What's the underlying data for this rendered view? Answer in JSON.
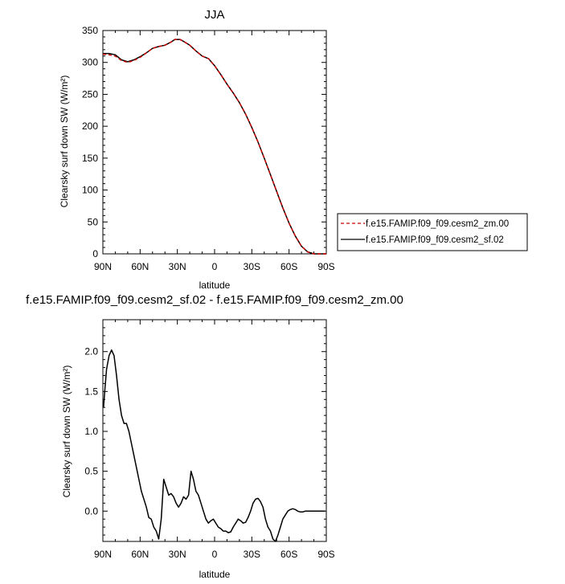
{
  "chart_data": [
    {
      "type": "line",
      "title": "JJA",
      "xlabel": "latitude",
      "ylabel": "Clearsky surf down SW (W/m²)",
      "xlim": [
        90,
        -90
      ],
      "ylim": [
        0,
        350
      ],
      "xticks": [
        90,
        60,
        30,
        0,
        -30,
        -60,
        -90
      ],
      "xtick_labels": [
        "90N",
        "60N",
        "30N",
        "0",
        "30S",
        "60S",
        "90S"
      ],
      "yticks": [
        0,
        50,
        100,
        150,
        200,
        250,
        300,
        350
      ],
      "ytick_labels": [
        "0",
        "50",
        "100",
        "150",
        "200",
        "250",
        "300",
        "350"
      ],
      "legend_position": "right",
      "series": [
        {
          "name": "f.e15.FAMIP.f09_f09.cesm2_zm.00",
          "color": "#cc0000",
          "dash": "dashed",
          "x": [
            90,
            85,
            80,
            75,
            70,
            65,
            60,
            55,
            50,
            45,
            40,
            35,
            32,
            30,
            28,
            25,
            20,
            15,
            10,
            5,
            0,
            -5,
            -10,
            -15,
            -20,
            -25,
            -30,
            -35,
            -40,
            -45,
            -50,
            -55,
            -60,
            -65,
            -70,
            -75,
            -80,
            -85,
            -90
          ],
          "y": [
            313,
            312,
            310,
            303,
            300,
            303,
            308,
            315,
            322,
            325,
            327,
            332,
            336,
            336,
            336,
            333,
            327,
            318,
            310,
            306,
            295,
            281,
            266,
            252,
            237,
            219,
            198,
            175,
            150,
            124,
            98,
            72,
            48,
            28,
            12,
            3,
            0,
            0,
            0
          ]
        },
        {
          "name": "f.e15.FAMIP.f09_f09.cesm2_sf.02",
          "color": "#000000",
          "dash": "solid",
          "x": [
            90,
            85,
            80,
            75,
            70,
            65,
            60,
            55,
            50,
            45,
            40,
            35,
            32,
            30,
            28,
            25,
            20,
            15,
            10,
            5,
            0,
            -5,
            -10,
            -15,
            -20,
            -25,
            -30,
            -35,
            -40,
            -45,
            -50,
            -55,
            -60,
            -65,
            -70,
            -75,
            -80,
            -85,
            -90
          ],
          "y": [
            314,
            314,
            312,
            304,
            301,
            304,
            309,
            315,
            322,
            325,
            327,
            332,
            336,
            336,
            336,
            333,
            327,
            318,
            310,
            306,
            295,
            281,
            266,
            252,
            237,
            219,
            198,
            175,
            150,
            124,
            98,
            72,
            48,
            28,
            12,
            3,
            0,
            0,
            0
          ]
        }
      ]
    },
    {
      "type": "line",
      "title": "f.e15.FAMIP.f09_f09.cesm2_sf.02 - f.e15.FAMIP.f09_f09.cesm2_zm.00",
      "xlabel": "latitude",
      "ylabel": "Clearsky surf down SW (W/m²)",
      "xlim": [
        90,
        -90
      ],
      "ylim": [
        -0.38,
        2.4
      ],
      "xticks": [
        90,
        60,
        30,
        0,
        -30,
        -60,
        -90
      ],
      "xtick_labels": [
        "90N",
        "60N",
        "30N",
        "0",
        "30S",
        "60S",
        "90S"
      ],
      "yticks": [
        0.0,
        0.5,
        1.0,
        1.5,
        2.0
      ],
      "ytick_labels": [
        "0.0",
        "0.5",
        "1.0",
        "1.5",
        "2.0"
      ],
      "series": [
        {
          "color": "#000000",
          "dash": "solid",
          "x": [
            89.5,
            88.5,
            87,
            85,
            83,
            81,
            79,
            77,
            75,
            73,
            71,
            69,
            67,
            65,
            63,
            61,
            59,
            57,
            55,
            53,
            51,
            49,
            47,
            45,
            43,
            41,
            39,
            37,
            35,
            33,
            31,
            29,
            27,
            25,
            23,
            21,
            19,
            17,
            15,
            13,
            11,
            9,
            7,
            5,
            3,
            1,
            -1,
            -3,
            -5,
            -7,
            -9,
            -11,
            -13,
            -15,
            -17,
            -19,
            -21,
            -23,
            -25,
            -27,
            -29,
            -31,
            -33,
            -35,
            -37,
            -39,
            -41,
            -43,
            -45,
            -47,
            -49,
            -51,
            -53,
            -55,
            -57,
            -59,
            -61,
            -63,
            -65,
            -67,
            -69,
            -71,
            -73,
            -75,
            -77,
            -79,
            -81,
            -83,
            -85,
            -87,
            -89
          ],
          "y": [
            1.3,
            1.5,
            1.78,
            1.95,
            2.02,
            1.95,
            1.7,
            1.4,
            1.2,
            1.1,
            1.1,
            1.0,
            0.85,
            0.7,
            0.55,
            0.4,
            0.25,
            0.15,
            0.05,
            -0.08,
            -0.1,
            -0.2,
            -0.25,
            -0.35,
            -0.1,
            0.4,
            0.3,
            0.2,
            0.22,
            0.18,
            0.1,
            0.05,
            0.1,
            0.18,
            0.15,
            0.2,
            0.5,
            0.4,
            0.25,
            0.2,
            0.1,
            0.0,
            -0.1,
            -0.15,
            -0.12,
            -0.1,
            -0.15,
            -0.2,
            -0.22,
            -0.25,
            -0.25,
            -0.27,
            -0.26,
            -0.2,
            -0.15,
            -0.1,
            -0.12,
            -0.15,
            -0.14,
            -0.08,
            0.0,
            0.1,
            0.15,
            0.16,
            0.12,
            0.05,
            -0.1,
            -0.2,
            -0.25,
            -0.35,
            -0.38,
            -0.3,
            -0.2,
            -0.1,
            -0.05,
            0.0,
            0.02,
            0.03,
            0.02,
            0.0,
            -0.01,
            -0.01,
            0.0,
            0.0,
            0.0,
            0.0,
            0.0,
            0.0,
            0.0,
            0.0,
            0.0
          ]
        }
      ]
    }
  ]
}
